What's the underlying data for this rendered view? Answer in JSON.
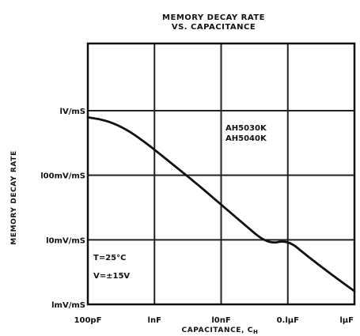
{
  "chart_data": {
    "type": "line",
    "title_line1": "MEMORY DECAY RATE",
    "title_line2": "VS. CAPACITANCE",
    "xlabel": "CAPACITANCE, C",
    "xlabel_subscript": "H",
    "ylabel": "MEMORY DECAY RATE",
    "x_scale": "log",
    "y_scale": "log",
    "x_ticks": [
      {
        "value": 1e-10,
        "label": "100pF"
      },
      {
        "value": 1e-09,
        "label": "lnF"
      },
      {
        "value": 1e-08,
        "label": "l0nF"
      },
      {
        "value": 1e-07,
        "label": "0.lµF"
      },
      {
        "value": 1e-06,
        "label": "lµF"
      }
    ],
    "y_ticks": [
      {
        "value": 1,
        "label": "lmV/mS"
      },
      {
        "value": 10,
        "label": "l0mV/mS"
      },
      {
        "value": 100,
        "label": "l00mV/mS"
      },
      {
        "value": 1000,
        "label": "lV/mS"
      }
    ],
    "xlim": [
      1e-10,
      1e-06
    ],
    "ylim": [
      1,
      1000
    ],
    "grid": true,
    "series": [
      {
        "name": "",
        "x": [
          1e-10,
          2e-10,
          4e-10,
          7e-10,
          1e-09,
          2e-09,
          5e-09,
          1e-08,
          2e-08,
          5e-08,
          1e-07,
          2e-07,
          5e-07,
          1e-06
        ],
        "y": [
          790,
          700,
          500,
          330,
          250,
          140,
          65,
          35,
          19,
          8.5,
          10,
          5.5,
          2.7,
          1.6
        ]
      }
    ],
    "annotations": {
      "part_numbers": [
        "AH5030K",
        "AH5040K"
      ],
      "conditions": [
        "T=25°C",
        "V=±15V"
      ]
    }
  }
}
